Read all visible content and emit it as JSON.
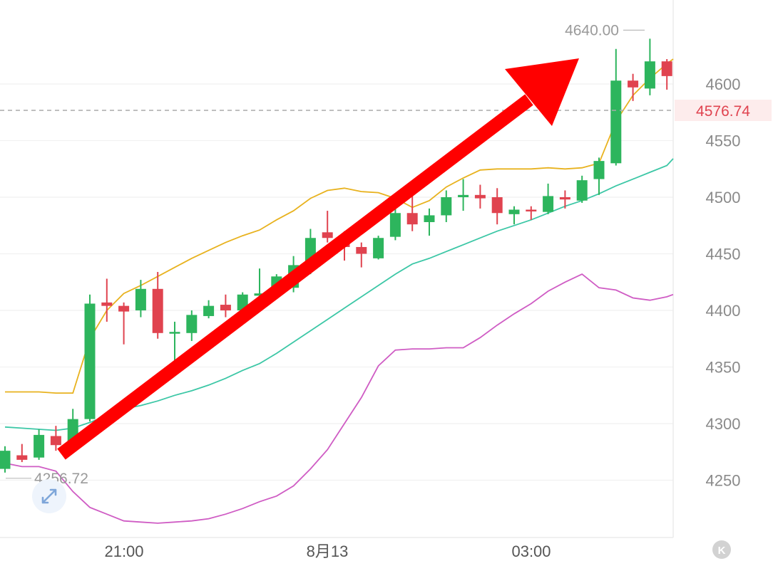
{
  "chart_data": {
    "type": "candlestick",
    "colors": {
      "up": "#2db55d",
      "down": "#e0434f",
      "ma_short": "#e8b21e",
      "ma_mid": "#3cc7a6",
      "ma_long": "#cf5cc4",
      "current_price": "#e0434f",
      "arrow": "#ff0000"
    },
    "y_axis": {
      "ticks": [
        "4600",
        "4550",
        "4500",
        "4450",
        "4400",
        "4350",
        "4300",
        "4250"
      ],
      "range": [
        4215,
        4680
      ]
    },
    "x_axis": {
      "ticks": [
        "21:00",
        "8月13",
        "03:00"
      ]
    },
    "current_price": {
      "label": "4576.74",
      "value": 4576.74
    },
    "annotations": {
      "high_label": "4640.00",
      "low_label": "4256.72"
    },
    "expand_icon": "expand-arrows-icon",
    "corner_icon": "k-circle-icon",
    "candles": [
      {
        "o": 4260,
        "c": 4276,
        "h": 4280,
        "l": 4256.72
      },
      {
        "o": 4272,
        "c": 4268,
        "h": 4282,
        "l": 4266
      },
      {
        "o": 4270,
        "c": 4290,
        "h": 4295,
        "l": 4268
      },
      {
        "o": 4289,
        "c": 4281,
        "h": 4298,
        "l": 4276
      },
      {
        "o": 4283,
        "c": 4304,
        "h": 4313,
        "l": 4280
      },
      {
        "o": 4304,
        "c": 4406,
        "h": 4414,
        "l": 4302
      },
      {
        "o": 4407,
        "c": 4404,
        "h": 4428,
        "l": 4390
      },
      {
        "o": 4404,
        "c": 4399,
        "h": 4407,
        "l": 4370
      },
      {
        "o": 4400,
        "c": 4419,
        "h": 4427,
        "l": 4394
      },
      {
        "o": 4419,
        "c": 4380,
        "h": 4434,
        "l": 4375
      },
      {
        "o": 4380,
        "c": 4381,
        "h": 4390,
        "l": 4355
      },
      {
        "o": 4380,
        "c": 4396,
        "h": 4400,
        "l": 4373
      },
      {
        "o": 4395,
        "c": 4404,
        "h": 4409,
        "l": 4393
      },
      {
        "o": 4405,
        "c": 4400,
        "h": 4414,
        "l": 4394
      },
      {
        "o": 4400,
        "c": 4414,
        "h": 4416,
        "l": 4394
      },
      {
        "o": 4413,
        "c": 4415,
        "h": 4437,
        "l": 4408
      },
      {
        "o": 4415,
        "c": 4430,
        "h": 4432,
        "l": 4411
      },
      {
        "o": 4420,
        "c": 4440,
        "h": 4448,
        "l": 4416
      },
      {
        "o": 4436,
        "c": 4464,
        "h": 4472,
        "l": 4432
      },
      {
        "o": 4469,
        "c": 4464,
        "h": 4488,
        "l": 4460
      },
      {
        "o": 4462,
        "c": 4456,
        "h": 4470,
        "l": 4444
      },
      {
        "o": 4456,
        "c": 4450,
        "h": 4460,
        "l": 4438
      },
      {
        "o": 4446,
        "c": 4464,
        "h": 4466,
        "l": 4445
      },
      {
        "o": 4465,
        "c": 4486,
        "h": 4491,
        "l": 4462
      },
      {
        "o": 4486,
        "c": 4476,
        "h": 4502,
        "l": 4470
      },
      {
        "o": 4478,
        "c": 4484,
        "h": 4490,
        "l": 4466
      },
      {
        "o": 4484,
        "c": 4500,
        "h": 4506,
        "l": 4478
      },
      {
        "o": 4500,
        "c": 4502,
        "h": 4516,
        "l": 4488
      },
      {
        "o": 4502,
        "c": 4499,
        "h": 4511,
        "l": 4490
      },
      {
        "o": 4500,
        "c": 4486,
        "h": 4508,
        "l": 4476
      },
      {
        "o": 4485,
        "c": 4489,
        "h": 4492,
        "l": 4476
      },
      {
        "o": 4489,
        "c": 4488,
        "h": 4492,
        "l": 4480
      },
      {
        "o": 4487,
        "c": 4501,
        "h": 4512,
        "l": 4485
      },
      {
        "o": 4500,
        "c": 4498,
        "h": 4506,
        "l": 4490
      },
      {
        "o": 4497,
        "c": 4515,
        "h": 4519,
        "l": 4495
      },
      {
        "o": 4516,
        "c": 4532,
        "h": 4535,
        "l": 4502
      },
      {
        "o": 4530,
        "c": 4603,
        "h": 4631,
        "l": 4528
      },
      {
        "o": 4603,
        "c": 4597,
        "h": 4609,
        "l": 4585
      },
      {
        "o": 4596,
        "c": 4620,
        "h": 4640,
        "l": 4590
      },
      {
        "o": 4620,
        "c": 4607,
        "h": 4622,
        "l": 4595
      }
    ],
    "ma_short": [
      4328,
      4328,
      4328,
      4327,
      4327,
      4375,
      4400,
      4415,
      4422,
      4430,
      4438,
      4446,
      4453,
      4460,
      4466,
      4471,
      4480,
      4488,
      4499,
      4506,
      4508,
      4505,
      4504,
      4499,
      4491,
      4497,
      4509,
      4517,
      4524,
      4525,
      4525,
      4525,
      4526,
      4525,
      4526,
      4530,
      4567,
      4590,
      4605,
      4618
    ],
    "ma_mid": [
      4297,
      4296,
      4295,
      4294,
      4296,
      4301,
      4307,
      4313,
      4316,
      4320,
      4325,
      4329,
      4334,
      4340,
      4347,
      4353,
      4362,
      4372,
      4382,
      4392,
      4402,
      4412,
      4422,
      4432,
      4441,
      4446,
      4452,
      4458,
      4464,
      4470,
      4475,
      4480,
      4486,
      4492,
      4497,
      4503,
      4510,
      4516,
      4522,
      4528
    ],
    "ma_long": [
      4265,
      4262,
      4262,
      4258,
      4240,
      4226,
      4220,
      4214,
      4213,
      4212,
      4213,
      4214,
      4216,
      4220,
      4225,
      4231,
      4236,
      4245,
      4260,
      4277,
      4300,
      4323,
      4351,
      4365,
      4366,
      4366,
      4367,
      4367,
      4376,
      4387,
      4397,
      4406,
      4417,
      4425,
      4432,
      4420,
      4418,
      4411,
      4409,
      4412
    ]
  }
}
